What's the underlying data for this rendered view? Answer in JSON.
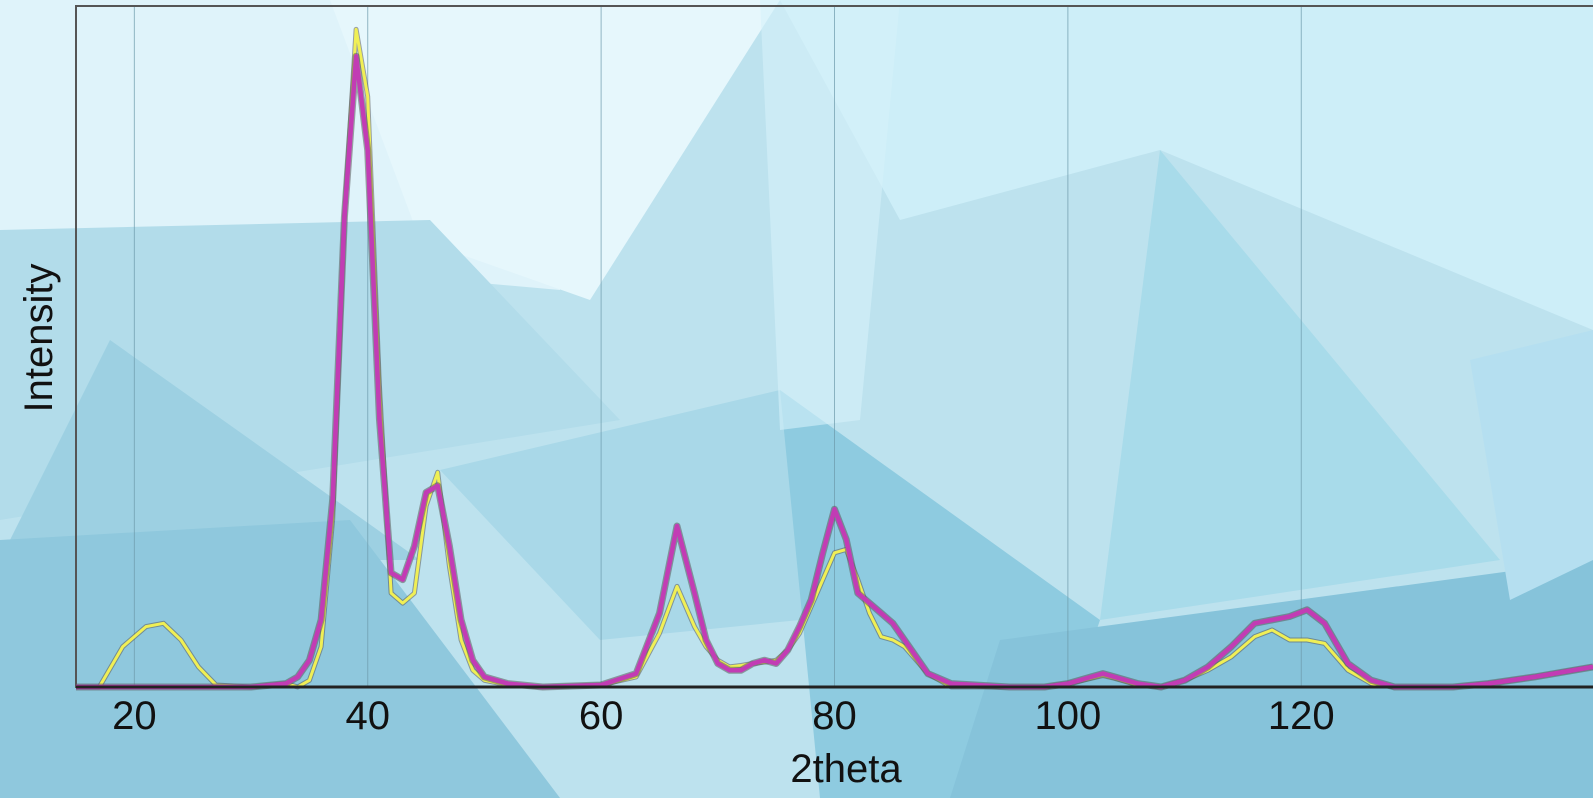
{
  "chart_data": {
    "type": "line",
    "title": "",
    "xlabel": "2theta",
    "ylabel": "Intensity",
    "xlim": [
      15,
      145
    ],
    "ylim": [
      0,
      100
    ],
    "x_ticks": [
      20,
      40,
      60,
      80,
      100,
      120
    ],
    "grid": "vertical",
    "colors": {
      "series_1": "#f0ef55",
      "series_2": "#c23cb4"
    },
    "series": [
      {
        "x": [
          15,
          17,
          19,
          21,
          22.5,
          24,
          25.5,
          27,
          30,
          33,
          34,
          35,
          36,
          37,
          38,
          39,
          40,
          41,
          42,
          43,
          44,
          45,
          46,
          47,
          48,
          49,
          50,
          52,
          55,
          60,
          63,
          65,
          66.5,
          68,
          69,
          70,
          71,
          72,
          73,
          74,
          75,
          76,
          77,
          78,
          79,
          80,
          81,
          82,
          83,
          84,
          85,
          86,
          88,
          90,
          95,
          98,
          100,
          102,
          103,
          104,
          106,
          108,
          110,
          112,
          114,
          116,
          117.5,
          119,
          120.5,
          122,
          124,
          126,
          128,
          130,
          133,
          136,
          140,
          145
        ],
        "y": [
          0,
          0,
          6,
          9,
          9.5,
          7,
          3,
          0.3,
          0,
          0.5,
          0,
          1,
          6,
          25,
          70,
          98,
          88,
          45,
          14,
          12.5,
          14,
          27,
          32,
          18,
          7,
          2.5,
          1,
          0.3,
          0,
          0.3,
          1.5,
          8,
          15,
          9,
          6,
          4,
          3,
          3.2,
          3.5,
          3.7,
          4,
          5.5,
          8,
          12,
          16,
          20,
          20.5,
          16,
          11,
          7.5,
          7,
          6,
          2,
          0,
          0,
          0,
          0.5,
          1.3,
          1.7,
          1.3,
          0.3,
          0,
          1,
          2.5,
          4.5,
          7.5,
          8.5,
          7,
          7,
          6.5,
          2.5,
          0.5,
          0,
          0,
          0,
          0.5,
          1.5,
          3
        ]
      },
      {
        "x": [
          15,
          17,
          19,
          21,
          22.5,
          24,
          25.5,
          27,
          30,
          33,
          34,
          35,
          36,
          37,
          38,
          39,
          40,
          41,
          42,
          43,
          44,
          45,
          46,
          47,
          48,
          49,
          50,
          52,
          55,
          60,
          63,
          65,
          66.5,
          68,
          69,
          70,
          71,
          72,
          73,
          74,
          75,
          76,
          77,
          78,
          79,
          80,
          81,
          82,
          83,
          84,
          85,
          86,
          88,
          90,
          95,
          98,
          100,
          102,
          103,
          104,
          106,
          108,
          110,
          112,
          114,
          116,
          117.5,
          119,
          120.5,
          122,
          124,
          126,
          128,
          130,
          133,
          136,
          140,
          145
        ],
        "y": [
          0,
          0,
          0,
          0,
          0,
          0,
          0,
          0,
          0,
          0.5,
          1.5,
          4,
          10,
          28,
          70,
          94,
          80,
          40,
          17,
          16,
          21,
          29,
          30,
          21,
          10,
          4,
          1.5,
          0.5,
          0,
          0.3,
          2,
          11,
          24,
          14,
          7,
          3.5,
          2.5,
          2.5,
          3.5,
          4,
          3.5,
          5.5,
          9,
          13,
          20,
          26.5,
          22,
          14,
          12.5,
          11,
          9.5,
          7,
          2,
          0.5,
          0,
          0,
          0.5,
          1.5,
          2,
          1.5,
          0.5,
          0,
          1,
          3,
          6,
          9.5,
          10,
          10.5,
          11.5,
          9.5,
          3.5,
          1,
          0,
          0,
          0,
          0.5,
          1.5,
          3
        ]
      }
    ]
  }
}
